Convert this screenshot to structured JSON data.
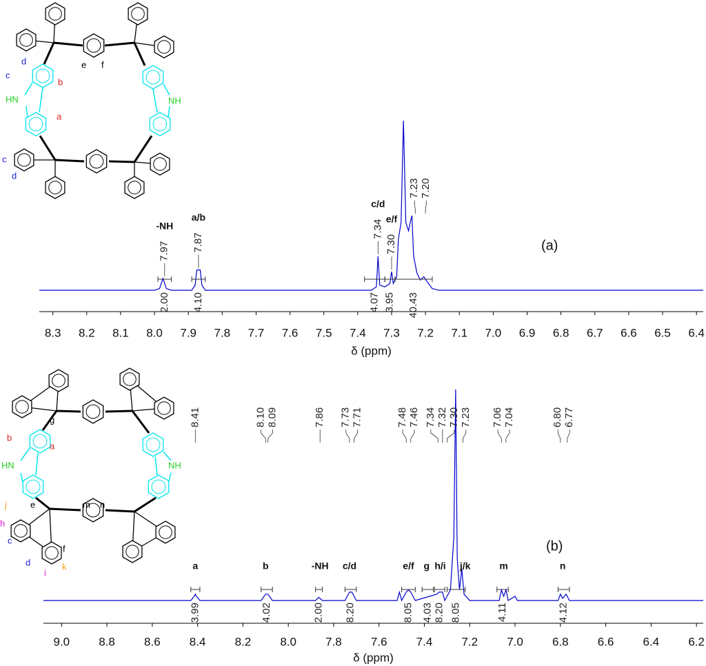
{
  "chart_data": [
    {
      "type": "line",
      "panel_label": "(a)",
      "x_label": "δ (ppm)",
      "xlim": [
        8.34,
        6.38
      ],
      "xticks": [
        8.3,
        8.2,
        8.1,
        {
          "value": 8.0,
          "label": "8.0"
        },
        7.9,
        7.8,
        7.7,
        7.6,
        7.5,
        7.4,
        7.3,
        7.2,
        7.1,
        {
          "value": 7.0,
          "label": "7.0"
        },
        6.9,
        6.8,
        6.7,
        6.6,
        6.5,
        6.4
      ],
      "series": [
        {
          "color": "#0000cc",
          "x": [
            8.34,
            8.0,
            7.985,
            7.975,
            7.965,
            7.95,
            7.89,
            7.88,
            7.875,
            7.865,
            7.86,
            7.85,
            7.36,
            7.345,
            7.34,
            7.335,
            7.32,
            7.305,
            7.3,
            7.295,
            7.285,
            7.28,
            7.272,
            7.265,
            7.258,
            7.25,
            7.245,
            7.24,
            7.235,
            7.225,
            7.215,
            7.205,
            7.195,
            7.18,
            7.16,
            6.38
          ],
          "values": [
            0,
            0,
            1,
            7,
            1,
            0,
            0,
            3,
            12,
            12,
            3,
            0,
            0,
            2,
            20,
            3,
            2,
            4,
            11,
            4,
            8,
            30,
            40,
            100,
            40,
            35,
            40,
            44,
            20,
            10,
            6,
            8,
            5,
            1,
            0,
            0
          ]
        }
      ],
      "peak_labels": [
        7.97,
        7.87,
        7.34,
        {
          "value": 7.3,
          "label": "7.30"
        },
        7.23,
        {
          "value": 7.2,
          "label": "7.20"
        }
      ],
      "integrals": [
        {
          "range": [
            7.99,
            7.95
          ],
          "value": 2,
          "label": "2.00"
        },
        {
          "range": [
            7.89,
            7.85
          ],
          "value": 4.1,
          "label": "4.10"
        },
        {
          "range": [
            7.38,
            7.32
          ],
          "value": 4.07
        },
        {
          "range": [
            7.32,
            7.29
          ],
          "value": 3.95
        },
        {
          "range": [
            7.29,
            7.18
          ],
          "value": 40.43
        }
      ],
      "assignments": [
        {
          "label": "-NH",
          "x": 7.97
        },
        {
          "label": "a/b",
          "x": 7.87
        },
        {
          "label": "c/d",
          "x": 7.34
        },
        {
          "label": "e/f",
          "x": 7.3
        }
      ],
      "structure_labels": [
        "d",
        "c",
        "e",
        "f",
        "b",
        "HN",
        "a",
        "NH",
        "c",
        "d"
      ]
    },
    {
      "type": "line",
      "panel_label": "(b)",
      "x_label": "δ (ppm)",
      "xlim": [
        9.08,
        6.17
      ],
      "xticks": [
        {
          "value": 9.0,
          "label": "9.0"
        },
        8.8,
        8.6,
        8.4,
        8.2,
        {
          "value": 8.0,
          "label": "8.0"
        },
        7.8,
        7.6,
        7.4,
        7.2,
        {
          "value": 7.0,
          "label": "7.0"
        },
        6.8,
        6.6,
        6.4,
        6.2
      ],
      "series": [
        {
          "color": "#0000cc",
          "x": [
            9.08,
            8.43,
            8.415,
            8.41,
            8.405,
            8.39,
            8.12,
            8.1,
            8.09,
            8.07,
            7.88,
            7.865,
            7.85,
            7.75,
            7.73,
            7.72,
            7.7,
            7.52,
            7.51,
            7.5,
            7.48,
            7.47,
            7.46,
            7.44,
            7.345,
            7.335,
            7.32,
            7.31,
            7.3,
            7.285,
            7.27,
            7.262,
            7.255,
            7.245,
            7.235,
            7.225,
            7.2,
            7.07,
            7.06,
            7.05,
            7.04,
            7.03,
            7.0,
            6.99,
            6.81,
            6.8,
            6.79,
            6.775,
            6.76,
            6.17
          ],
          "values": [
            0,
            0,
            2,
            3,
            2,
            0,
            0,
            3,
            3,
            0,
            0,
            1.5,
            0,
            0,
            4,
            4,
            0,
            0,
            4,
            0,
            4,
            5,
            4,
            0,
            3,
            4,
            4,
            0,
            2,
            5,
            30,
            100,
            20,
            5,
            15,
            3,
            0,
            0,
            5,
            2,
            5,
            0,
            2,
            0,
            0,
            3,
            1,
            3,
            0,
            0
          ]
        }
      ],
      "peak_labels": [
        8.41,
        {
          "value": 8.1,
          "label": "8.10"
        },
        8.09,
        7.86,
        7.73,
        7.71,
        7.48,
        7.46,
        7.34,
        7.32,
        {
          "value": 7.3,
          "label": "7.30"
        },
        7.23,
        7.06,
        7.04,
        {
          "value": 6.8,
          "label": "6.80"
        },
        6.77
      ],
      "integrals": [
        {
          "range": [
            8.43,
            8.39
          ],
          "value": 3.99
        },
        {
          "range": [
            8.12,
            8.07
          ],
          "value": 4.02
        },
        {
          "range": [
            7.88,
            7.85
          ],
          "value": 2,
          "label": "2.00"
        },
        {
          "range": [
            7.75,
            7.7
          ],
          "value": 8.2,
          "label": "8.20"
        },
        {
          "range": [
            7.5,
            7.44
          ],
          "value": 8.05
        },
        {
          "range": [
            7.41,
            7.36
          ],
          "value": 4.03
        },
        {
          "range": [
            7.355,
            7.31
          ],
          "value": 8.2,
          "label": "8.20"
        },
        {
          "range": [
            7.3,
            7.22
          ],
          "value": 8.05
        },
        {
          "range": [
            7.08,
            7.03
          ],
          "value": 4.11
        },
        {
          "range": [
            6.81,
            6.76
          ],
          "value": 4.12
        }
      ],
      "assignments": [
        {
          "label": "a",
          "x": 8.41
        },
        {
          "label": "b",
          "x": 8.1
        },
        {
          "label": "-NH",
          "x": 7.86
        },
        {
          "label": "c/d",
          "x": 7.73
        },
        {
          "label": "e/f",
          "x": 7.47
        },
        {
          "label": "g",
          "x": 7.39
        },
        {
          "label": "h/i",
          "x": 7.33
        },
        {
          "label": "j/k",
          "x": 7.22
        },
        {
          "label": "m",
          "x": 7.05
        },
        {
          "label": "n",
          "x": 6.79
        }
      ],
      "structure_labels": [
        "g",
        "b",
        "a",
        "HN",
        "NH",
        "j",
        "e",
        "m",
        "n",
        "h",
        "c",
        "f",
        "d",
        "k",
        "i"
      ]
    }
  ]
}
